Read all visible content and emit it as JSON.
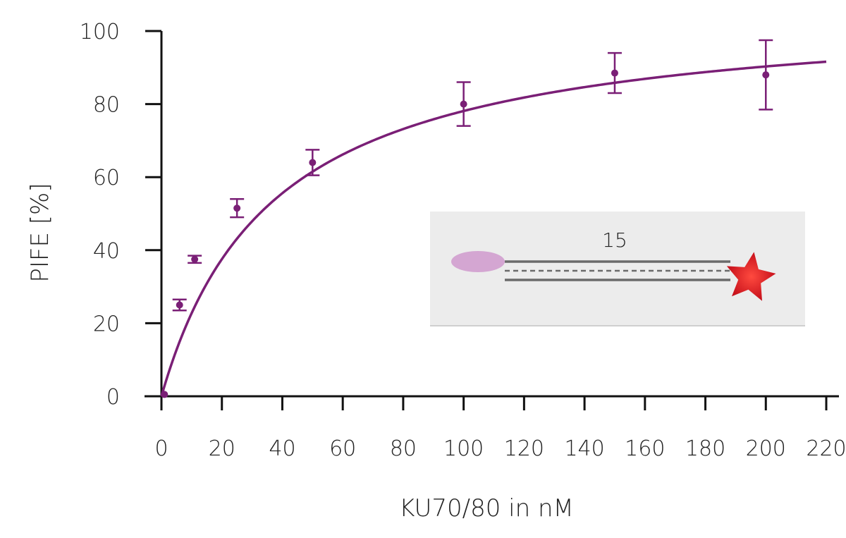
{
  "chart_data": {
    "type": "scatter",
    "title": "",
    "xlabel": "KU70/80 in nM",
    "ylabel": "PIFE [%]",
    "xlim": [
      0,
      220
    ],
    "ylim": [
      0,
      100
    ],
    "x_ticks": [
      "0",
      "20",
      "40",
      "60",
      "80",
      "100",
      "120",
      "140",
      "160",
      "180",
      "200",
      "220"
    ],
    "y_ticks": [
      "0",
      "20",
      "40",
      "60",
      "80",
      "100"
    ],
    "grid": false,
    "series": [
      {
        "x": [
          1,
          6,
          11,
          25,
          50,
          100,
          150,
          200
        ],
        "y": [
          0.5,
          25,
          37.5,
          51.5,
          64,
          80,
          88.5,
          88
        ],
        "error": [
          0,
          1.5,
          1,
          2.5,
          3.5,
          6,
          5.5,
          9.5
        ]
      }
    ],
    "fit": {
      "type": "hyperbolic",
      "bmax": 107,
      "kd": 37,
      "x_range": [
        0,
        220
      ]
    },
    "inset": {
      "label": "15"
    },
    "colors": {
      "series": "#7a1f76",
      "axis": "#111111",
      "inset_background": "#ececec",
      "inset_protein": "#d4a6d2",
      "inset_strand": "#6b6b6b",
      "inset_star": "#d9141e"
    }
  }
}
